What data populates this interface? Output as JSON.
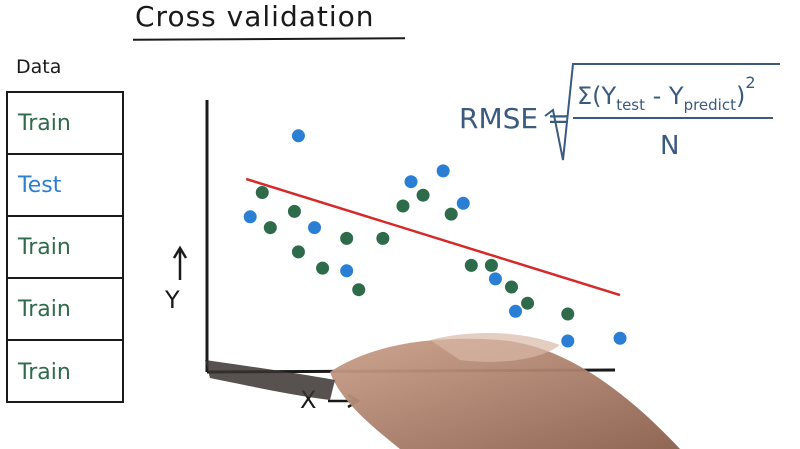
{
  "title": "Cross validation",
  "data_label": "Data",
  "folds": [
    {
      "label": "Train",
      "role": "train"
    },
    {
      "label": "Test",
      "role": "test"
    },
    {
      "label": "Train",
      "role": "train"
    },
    {
      "label": "Train",
      "role": "train"
    },
    {
      "label": "Train",
      "role": "train"
    }
  ],
  "formula": {
    "lhs": "RMSE =",
    "numerator_open": "Σ(Y",
    "test_sub": "test",
    "minus": " - Y",
    "predict_sub": "predict",
    "close": ")",
    "exponent": "2",
    "denominator": "N"
  },
  "colors": {
    "train": "#2e6b4a",
    "test": "#2a7fd4",
    "fit_line": "#d42a2a",
    "ink": "#1a1a1a",
    "formula": "#3a5a80"
  },
  "chart_data": {
    "type": "scatter",
    "xlabel": "X",
    "ylabel": "Y",
    "xlim": [
      0,
      100
    ],
    "ylim": [
      0,
      100
    ],
    "series": [
      {
        "role": "train",
        "points": [
          [
            13,
            65
          ],
          [
            15,
            52
          ],
          [
            21,
            58
          ],
          [
            22,
            43
          ],
          [
            28,
            37
          ],
          [
            34,
            48
          ],
          [
            37,
            29
          ],
          [
            43,
            48
          ],
          [
            48,
            60
          ],
          [
            53,
            64
          ],
          [
            60,
            57
          ],
          [
            65,
            38
          ],
          [
            70,
            38
          ],
          [
            75,
            30
          ],
          [
            79,
            24
          ],
          [
            89,
            20
          ]
        ]
      },
      {
        "role": "test",
        "points": [
          [
            10,
            56
          ],
          [
            22,
            86
          ],
          [
            26,
            52
          ],
          [
            34,
            36
          ],
          [
            50,
            69
          ],
          [
            58,
            73
          ],
          [
            63,
            61
          ],
          [
            71,
            33
          ],
          [
            76,
            21
          ],
          [
            89,
            10
          ],
          [
            102,
            11
          ]
        ]
      }
    ],
    "fit_line": {
      "x": [
        9,
        105
      ],
      "y": [
        70,
        27
      ]
    }
  }
}
